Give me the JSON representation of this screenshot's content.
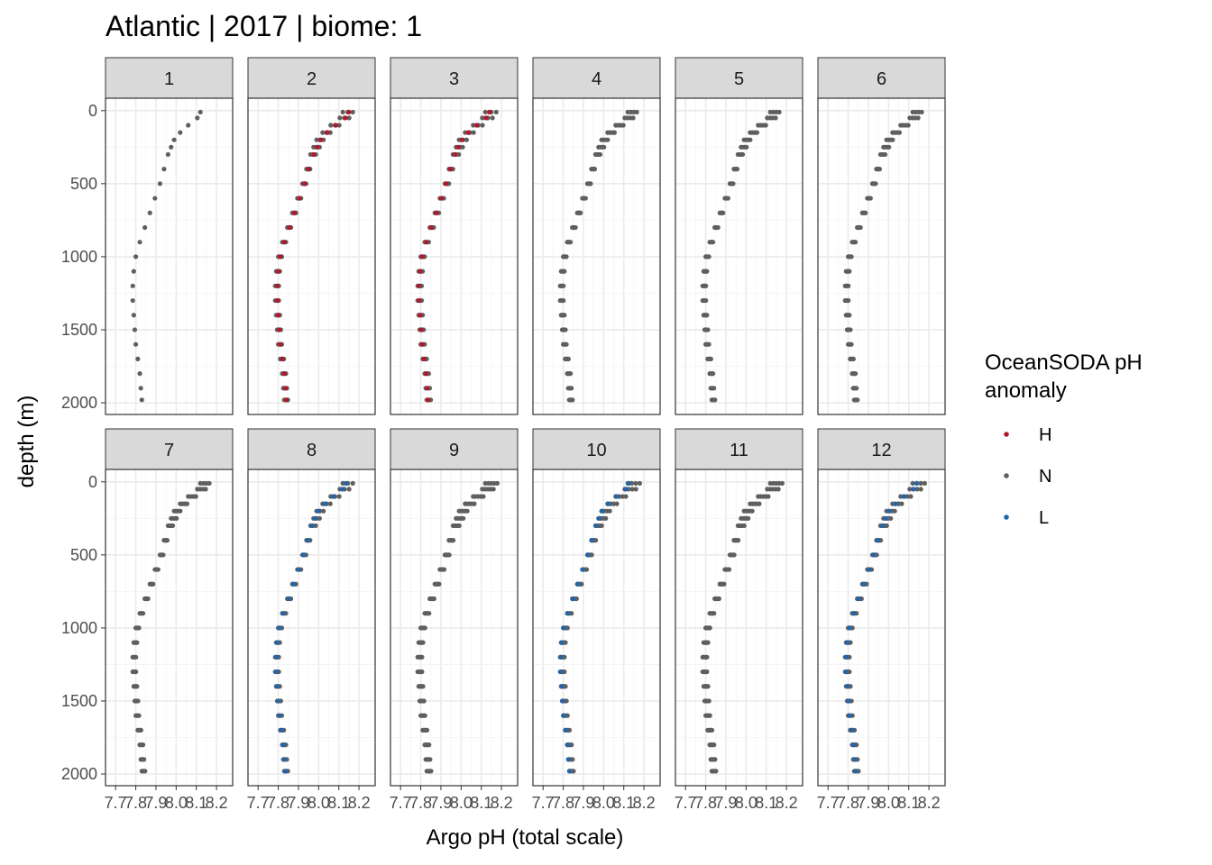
{
  "chart_data": {
    "type": "scatter",
    "title": "Atlantic | 2017 | biome: 1",
    "xlabel": "Argo pH (total scale)",
    "ylabel": "depth (m)",
    "xlim": [
      7.65,
      8.28
    ],
    "ylim": [
      2080,
      -85
    ],
    "x_ticks": [
      7.7,
      7.8,
      7.9,
      8.0,
      8.1,
      8.2
    ],
    "x_tick_labels": [
      "7.7",
      "7.8",
      "7.9",
      "8.0",
      "8.1",
      "8.2"
    ],
    "y_ticks": [
      0,
      500,
      1000,
      1500,
      2000
    ],
    "y_tick_labels": [
      "0",
      "500",
      "1000",
      "1500",
      "2000"
    ],
    "grid": true,
    "legend": {
      "title_line1": "OceanSODA pH",
      "title_line2": "anomaly",
      "placement": "right",
      "items": [
        {
          "key": "H",
          "label": "H",
          "color": "#b2182b"
        },
        {
          "key": "N",
          "label": "N",
          "color": "#5f5f5f"
        },
        {
          "key": "L",
          "label": "L",
          "color": "#2166ac"
        }
      ]
    },
    "panels": [
      {
        "label": "1",
        "profiles": [
          {
            "class": "N",
            "spread": 0.0
          }
        ]
      },
      {
        "label": "2",
        "profiles": [
          {
            "class": "N",
            "spread": 0.0
          },
          {
            "class": "N",
            "spread": 0.025
          },
          {
            "class": "N",
            "spread": 0.05
          },
          {
            "class": "H",
            "spread": 0.03
          }
        ]
      },
      {
        "label": "3",
        "profiles": [
          {
            "class": "N",
            "spread": 0.0
          },
          {
            "class": "N",
            "spread": 0.03
          },
          {
            "class": "N",
            "spread": 0.055
          },
          {
            "class": "H",
            "spread": 0.02
          }
        ]
      },
      {
        "label": "4",
        "profiles": [
          {
            "class": "N",
            "spread": 0.0
          },
          {
            "class": "N",
            "spread": 0.015
          },
          {
            "class": "N",
            "spread": 0.03
          },
          {
            "class": "N",
            "spread": 0.045
          }
        ]
      },
      {
        "label": "5",
        "profiles": [
          {
            "class": "N",
            "spread": 0.0
          },
          {
            "class": "N",
            "spread": 0.015
          },
          {
            "class": "N",
            "spread": 0.03
          },
          {
            "class": "N",
            "spread": 0.045
          }
        ]
      },
      {
        "label": "6",
        "profiles": [
          {
            "class": "N",
            "spread": 0.0
          },
          {
            "class": "N",
            "spread": 0.015
          },
          {
            "class": "N",
            "spread": 0.03
          },
          {
            "class": "N",
            "spread": 0.045
          }
        ]
      },
      {
        "label": "7",
        "profiles": [
          {
            "class": "N",
            "spread": 0.0
          },
          {
            "class": "N",
            "spread": 0.015
          },
          {
            "class": "N",
            "spread": 0.03
          },
          {
            "class": "N",
            "spread": 0.045
          }
        ]
      },
      {
        "label": "8",
        "profiles": [
          {
            "class": "N",
            "spread": 0.0
          },
          {
            "class": "N",
            "spread": 0.025
          },
          {
            "class": "N",
            "spread": 0.05
          },
          {
            "class": "L",
            "spread": 0.015
          }
        ]
      },
      {
        "label": "9",
        "profiles": [
          {
            "class": "N",
            "spread": 0.0
          },
          {
            "class": "N",
            "spread": 0.015
          },
          {
            "class": "N",
            "spread": 0.03
          },
          {
            "class": "N",
            "spread": 0.045
          },
          {
            "class": "N",
            "spread": 0.06
          }
        ]
      },
      {
        "label": "10",
        "profiles": [
          {
            "class": "N",
            "spread": 0.0
          },
          {
            "class": "N",
            "spread": 0.02
          },
          {
            "class": "N",
            "spread": 0.04
          },
          {
            "class": "N",
            "spread": 0.06
          },
          {
            "class": "L",
            "spread": 0.005
          }
        ]
      },
      {
        "label": "11",
        "profiles": [
          {
            "class": "N",
            "spread": 0.0
          },
          {
            "class": "N",
            "spread": 0.015
          },
          {
            "class": "N",
            "spread": 0.03
          },
          {
            "class": "N",
            "spread": 0.045
          },
          {
            "class": "N",
            "spread": 0.06
          }
        ]
      },
      {
        "label": "12",
        "profiles": [
          {
            "class": "N",
            "spread": 0.0
          },
          {
            "class": "N",
            "spread": 0.02
          },
          {
            "class": "N",
            "spread": 0.04
          },
          {
            "class": "N",
            "spread": 0.06
          },
          {
            "class": "L",
            "spread": 0.02
          }
        ]
      }
    ],
    "base_profile": [
      {
        "depth": 10,
        "ph": 8.12
      },
      {
        "depth": 50,
        "ph": 8.105
      },
      {
        "depth": 100,
        "ph": 8.06
      },
      {
        "depth": 150,
        "ph": 8.02
      },
      {
        "depth": 200,
        "ph": 7.99
      },
      {
        "depth": 250,
        "ph": 7.975
      },
      {
        "depth": 300,
        "ph": 7.96
      },
      {
        "depth": 400,
        "ph": 7.94
      },
      {
        "depth": 500,
        "ph": 7.92
      },
      {
        "depth": 600,
        "ph": 7.895
      },
      {
        "depth": 700,
        "ph": 7.87
      },
      {
        "depth": 800,
        "ph": 7.845
      },
      {
        "depth": 900,
        "ph": 7.82
      },
      {
        "depth": 1000,
        "ph": 7.8
      },
      {
        "depth": 1100,
        "ph": 7.79
      },
      {
        "depth": 1200,
        "ph": 7.785
      },
      {
        "depth": 1300,
        "ph": 7.785
      },
      {
        "depth": 1400,
        "ph": 7.79
      },
      {
        "depth": 1500,
        "ph": 7.795
      },
      {
        "depth": 1600,
        "ph": 7.8
      },
      {
        "depth": 1700,
        "ph": 7.81
      },
      {
        "depth": 1800,
        "ph": 7.82
      },
      {
        "depth": 1900,
        "ph": 7.825
      },
      {
        "depth": 1980,
        "ph": 7.83
      }
    ]
  }
}
